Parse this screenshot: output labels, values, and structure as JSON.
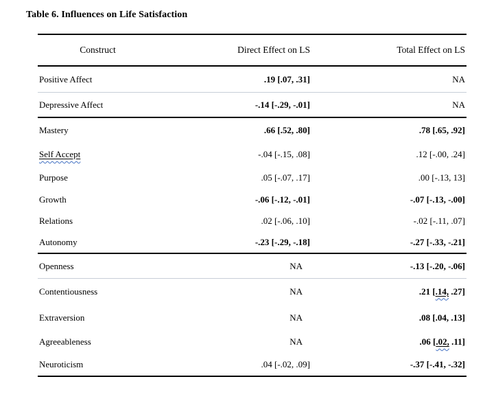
{
  "title": "Table 6. Influences on Life Satisfaction",
  "colors": {
    "background": "#ffffff",
    "text": "#000000",
    "rule": "#000000",
    "thin_divider": "#c7ced8",
    "squiggle": "#4472C4"
  },
  "table": {
    "headers": {
      "construct": "Construct",
      "direct": "Direct Effect on LS",
      "total": "Total Effect on LS"
    },
    "rows": [
      {
        "construct": "Positive Affect",
        "direct": ".19 [.07, .31]",
        "direct_bold": true,
        "total": "NA",
        "total_bold": false,
        "divider_after": "thin"
      },
      {
        "construct": "Depressive Affect",
        "direct": "-.14 [-.29, -.01]",
        "direct_bold": true,
        "total": "NA",
        "total_bold": false,
        "divider_after": "thick"
      },
      {
        "construct": "Mastery",
        "direct": ".66 [.52, .80]",
        "direct_bold": true,
        "total": ".78 [.65, .92]",
        "total_bold": true,
        "divider_after": "none"
      },
      {
        "construct": "Self Accept",
        "construct_marked": true,
        "direct": "-.04 [-.15, .08]",
        "direct_bold": false,
        "total": ".12 [-.00, .24]",
        "total_bold": false,
        "divider_after": "none"
      },
      {
        "construct": "Purpose",
        "direct": ".05 [-.07, .17]",
        "direct_bold": false,
        "total": ".00 [-.13, 13]",
        "total_bold": false,
        "divider_after": "none"
      },
      {
        "construct": "Growth",
        "direct": "-.06 [-.12, -.01]",
        "direct_bold": true,
        "total": "-.07 [-.13, -.00]",
        "total_bold": true,
        "divider_after": "none"
      },
      {
        "construct": "Relations",
        "direct": ".02 [-.06, .10]",
        "direct_bold": false,
        "total": "-.02 [-.11, .07]",
        "total_bold": false,
        "divider_after": "none"
      },
      {
        "construct": "Autonomy",
        "direct": "-.23 [-.29, -.18]",
        "direct_bold": true,
        "total": "-.27 [-.33, -.21]",
        "total_bold": true,
        "divider_after": "thick"
      },
      {
        "construct": "Openness",
        "direct": "NA",
        "direct_bold": false,
        "total": "-.13 [-.20, -.06]",
        "total_bold": true,
        "divider_after": "thin"
      },
      {
        "construct": "Contentiousness",
        "direct": "NA",
        "direct_bold": false,
        "total": ".21 [.14, .27]",
        "total_bold": true,
        "total_marked": ".14,",
        "divider_after": "none"
      },
      {
        "construct": "Extraversion",
        "direct": "NA",
        "direct_bold": false,
        "total": ".08 [.04, .13]",
        "total_bold": true,
        "divider_after": "none"
      },
      {
        "construct": "Agreeableness",
        "direct": "NA",
        "direct_bold": false,
        "total": ".06 [.02, .11]",
        "total_bold": true,
        "total_marked": ".02,",
        "divider_after": "none"
      },
      {
        "construct": "Neuroticism",
        "direct": ".04 [-.02, .09]",
        "direct_bold": false,
        "total": "-.37 [-.41, -.32]",
        "total_bold": true,
        "divider_after": "none"
      }
    ]
  }
}
